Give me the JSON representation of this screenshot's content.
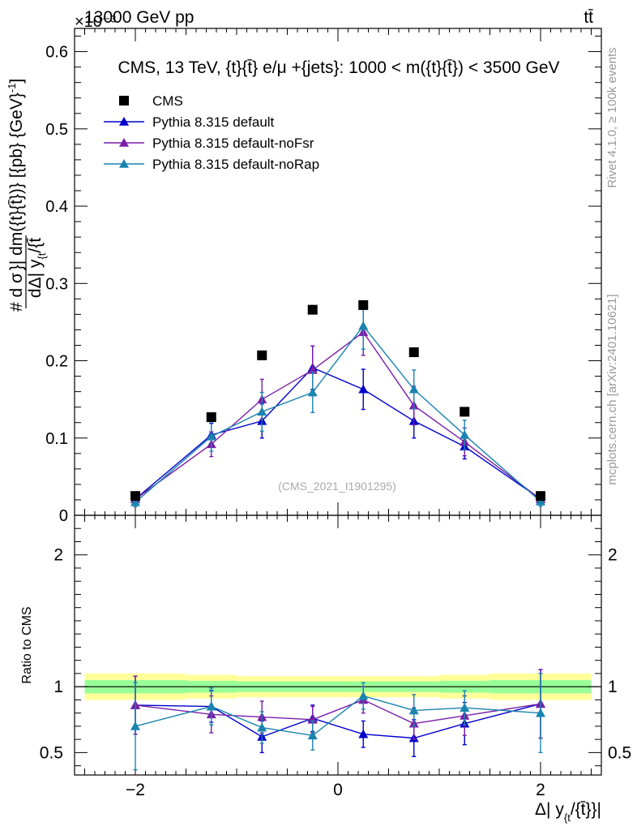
{
  "header": {
    "left": "13000 GeV pp",
    "right": "tt̄",
    "exponent": "×10⁻³"
  },
  "side_text": {
    "rivet": "Rivet 4.1.0, ≥ 100k events",
    "mcplots": "mcplots.cern.ch [arXiv:2401.10621]"
  },
  "chart_data": [
    {
      "type": "line",
      "title": "CMS, 13 TeV, {t}{t̄} e/μ +{jets}: 1000 < m({t}{t̄}) < 3500 GeV",
      "watermark": "(CMS_2021_I1901295)",
      "ylabel": "# d σ / dΔ| y_{t}/{t̄ | dm({t}{t̄})} [{pb} {GeV}⁻¹]",
      "ylabel_top": "# d σ",
      "ylabel_bottom": "dΔ| y",
      "ylabel_sub": "{t",
      "ylabel_after": "/{t̄",
      "ylabel_right": "}| dm({t}{t̄})} [{pb} {GeV}",
      "ylabel_sup": "-1",
      "ylabel_close": "]",
      "y_scale": "×10⁻³",
      "xlim": [
        -2.6,
        2.6
      ],
      "ylim": [
        0,
        0.63
      ],
      "yticks": [
        0,
        0.1,
        0.2,
        0.3,
        0.4,
        0.5,
        0.6
      ],
      "ytick_labels": [
        "0",
        "0.1",
        "0.2",
        "0.3",
        "0.4",
        "0.5",
        "0.6"
      ],
      "x": [
        -2.0,
        -1.25,
        -0.75,
        -0.25,
        0.25,
        0.75,
        1.25,
        2.0
      ],
      "legend_position": "top-left",
      "series": [
        {
          "name": "CMS",
          "color": "#000000",
          "marker": "square",
          "values": [
            0.025,
            0.127,
            0.207,
            0.266,
            0.272,
            0.211,
            0.134,
            0.025
          ],
          "errors": [
            0,
            0,
            0,
            0,
            0,
            0,
            0,
            0
          ]
        },
        {
          "name": "Pythia 8.315 default",
          "color": "#0000cc",
          "marker": "triangle",
          "values": [
            0.021,
            0.104,
            0.122,
            0.191,
            0.163,
            0.122,
            0.089,
            0.021
          ],
          "errors": [
            0.005,
            0.015,
            0.022,
            0.028,
            0.026,
            0.022,
            0.016,
            0.005
          ]
        },
        {
          "name": "Pythia 8.315 default-noFsr",
          "color": "#7a1ea8",
          "marker": "triangle",
          "values": [
            0.021,
            0.092,
            0.15,
            0.188,
            0.237,
            0.142,
            0.095,
            0.021
          ],
          "errors": [
            0.005,
            0.016,
            0.026,
            0.031,
            0.03,
            0.025,
            0.018,
            0.005
          ]
        },
        {
          "name": "Pythia 8.315 default-noRap",
          "color": "#1a84b0",
          "marker": "triangle",
          "values": [
            0.017,
            0.102,
            0.134,
            0.159,
            0.245,
            0.163,
            0.104,
            0.018
          ],
          "errors": [
            0.006,
            0.019,
            0.025,
            0.026,
            0.03,
            0.025,
            0.019,
            0.006
          ]
        }
      ]
    },
    {
      "type": "line",
      "ylabel": "Ratio to CMS",
      "xlabel": "Δ| y_{t}/{t̄}}|",
      "xlabel_main": "Δ| y",
      "xlabel_sub": "{t",
      "xlabel_after": "/{t̄}}|",
      "xlim": [
        -2.6,
        2.6
      ],
      "ylim": [
        0.33,
        2.3
      ],
      "yticks": [
        0.5,
        1,
        2
      ],
      "ytick_labels": [
        "0.5",
        "1",
        "2"
      ],
      "xticks": [
        -2,
        0,
        2
      ],
      "xtick_labels": [
        "−2",
        "0",
        "2"
      ],
      "x": [
        -2.0,
        -1.25,
        -0.75,
        -0.25,
        0.25,
        0.75,
        1.25,
        2.0
      ],
      "bands": [
        {
          "x_range": [
            -2.5,
            -1.5
          ],
          "green": [
            0.95,
            1.05
          ],
          "yellow": [
            0.9,
            1.1
          ]
        },
        {
          "x_range": [
            -1.5,
            -1.0
          ],
          "green": [
            0.955,
            1.045
          ],
          "yellow": [
            0.91,
            1.09
          ]
        },
        {
          "x_range": [
            -1.0,
            0.0
          ],
          "green": [
            0.96,
            1.04
          ],
          "yellow": [
            0.92,
            1.08
          ]
        },
        {
          "x_range": [
            0.0,
            1.0
          ],
          "green": [
            0.96,
            1.04
          ],
          "yellow": [
            0.92,
            1.08
          ]
        },
        {
          "x_range": [
            1.0,
            1.5
          ],
          "green": [
            0.955,
            1.045
          ],
          "yellow": [
            0.91,
            1.09
          ]
        },
        {
          "x_range": [
            1.5,
            2.5
          ],
          "green": [
            0.95,
            1.05
          ],
          "yellow": [
            0.9,
            1.1
          ]
        }
      ],
      "band_colors": {
        "green": "#99ff99",
        "yellow": "#ffff99"
      },
      "series": [
        {
          "name": "Pythia 8.315 default",
          "color": "#0000cc",
          "values": [
            0.86,
            0.85,
            0.62,
            0.76,
            0.64,
            0.61,
            0.72,
            0.87
          ],
          "errors": [
            0.22,
            0.12,
            0.12,
            0.1,
            0.1,
            0.14,
            0.16,
            0.26
          ]
        },
        {
          "name": "Pythia 8.315 default-noFsr",
          "color": "#7a1ea8",
          "values": [
            0.86,
            0.79,
            0.77,
            0.75,
            0.9,
            0.72,
            0.78,
            0.87
          ],
          "errors": [
            0.22,
            0.14,
            0.12,
            0.1,
            0.1,
            0.12,
            0.15,
            0.26
          ]
        },
        {
          "name": "Pythia 8.315 default-noRap",
          "color": "#1a84b0",
          "values": [
            0.7,
            0.85,
            0.69,
            0.63,
            0.93,
            0.82,
            0.84,
            0.8
          ],
          "errors": [
            0.33,
            0.14,
            0.12,
            0.11,
            0.1,
            0.12,
            0.13,
            0.3
          ]
        }
      ]
    }
  ]
}
